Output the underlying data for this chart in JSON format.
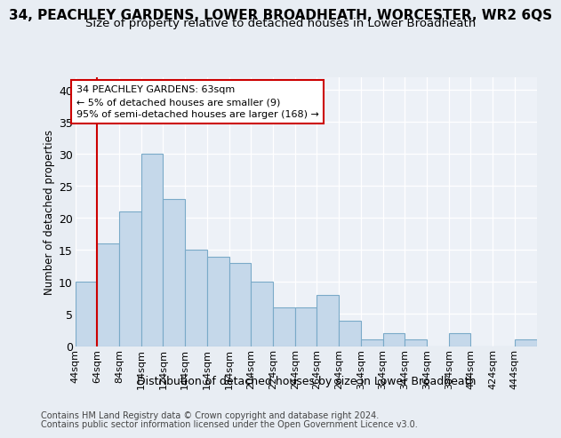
{
  "title_line1": "34, PEACHLEY GARDENS, LOWER BROADHEATH, WORCESTER, WR2 6QS",
  "title_line2": "Size of property relative to detached houses in Lower Broadheath",
  "xlabel": "Distribution of detached houses by size in Lower Broadheath",
  "ylabel": "Number of detached properties",
  "footer_line1": "Contains HM Land Registry data © Crown copyright and database right 2024.",
  "footer_line2": "Contains public sector information licensed under the Open Government Licence v3.0.",
  "annotation_line1": "34 PEACHLEY GARDENS: 63sqm",
  "annotation_line2": "← 5% of detached houses are smaller (9)",
  "annotation_line3": "95% of semi-detached houses are larger (168) →",
  "bar_color": "#c5d8ea",
  "bar_edge_color": "#7aaac8",
  "categories": [
    "44sqm",
    "64sqm",
    "84sqm",
    "104sqm",
    "124sqm",
    "144sqm",
    "164sqm",
    "184sqm",
    "204sqm",
    "224sqm",
    "244sqm",
    "264sqm",
    "284sqm",
    "304sqm",
    "324sqm",
    "344sqm",
    "364sqm",
    "384sqm",
    "404sqm",
    "424sqm",
    "444sqm"
  ],
  "values": [
    10,
    16,
    21,
    30,
    23,
    15,
    14,
    13,
    10,
    6,
    6,
    8,
    4,
    1,
    2,
    1,
    0,
    2,
    0,
    0,
    1
  ],
  "bin_size": 20,
  "xlim_min": 44,
  "xlim_max": 464,
  "ylim_min": 0,
  "ylim_max": 42,
  "yticks": [
    0,
    5,
    10,
    15,
    20,
    25,
    30,
    35,
    40
  ],
  "marker_x": 64,
  "marker_color": "#cc0000",
  "bg_color": "#e8edf3",
  "plot_bg_color": "#edf1f7",
  "grid_color": "#ffffff",
  "title1_fontsize": 11,
  "title2_fontsize": 9.5,
  "ylabel_fontsize": 8.5,
  "xlabel_fontsize": 9,
  "tick_fontsize": 8,
  "annotation_fontsize": 8,
  "footer_fontsize": 7
}
